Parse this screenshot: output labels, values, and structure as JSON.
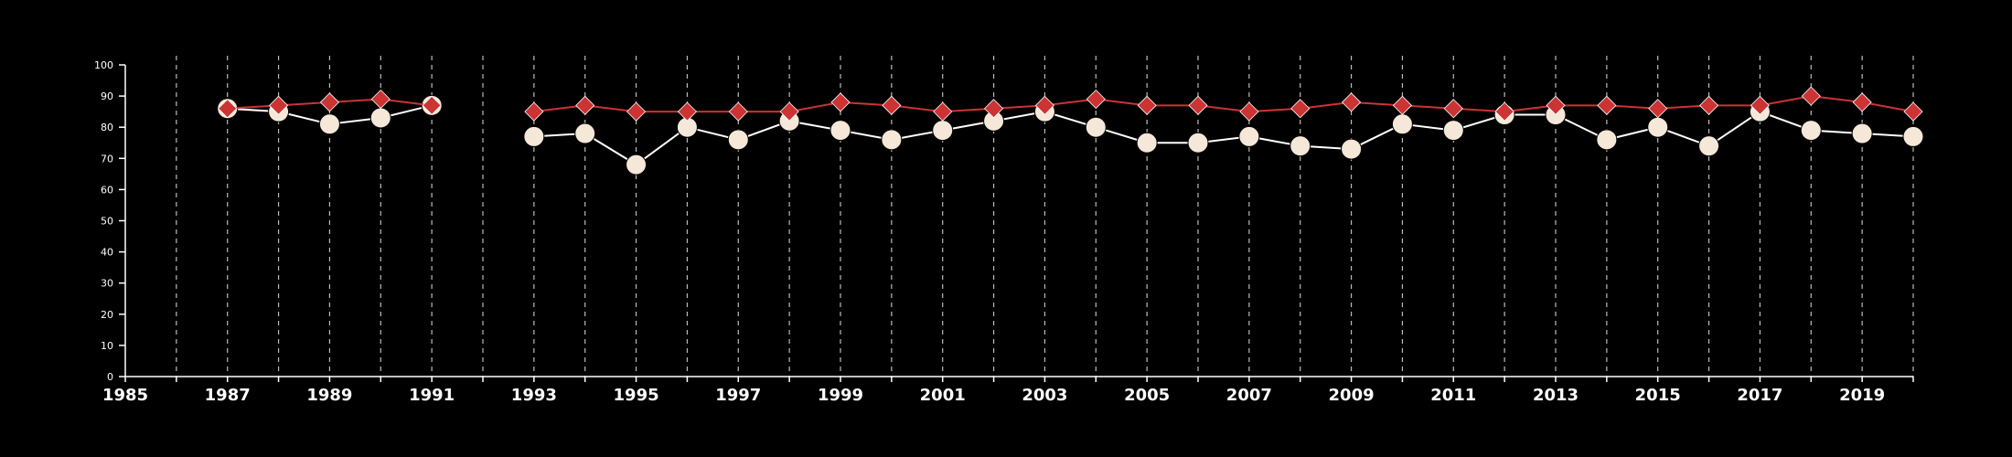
{
  "chart_data": {
    "type": "line",
    "title": "",
    "xlabel": "",
    "ylabel": "",
    "xlim": [
      1985,
      2020
    ],
    "ylim": [
      0,
      100
    ],
    "y_ticks": [
      0,
      10,
      20,
      30,
      40,
      50,
      60,
      70,
      80,
      90,
      100
    ],
    "x_ticks": [
      1985,
      1987,
      1989,
      1991,
      1993,
      1995,
      1997,
      1999,
      2001,
      2003,
      2005,
      2007,
      2009,
      2011,
      2013,
      2015,
      2017,
      2019
    ],
    "x_gridlines": [
      1986,
      1987,
      1988,
      1989,
      1990,
      1991,
      1992,
      1993,
      1994,
      1995,
      1996,
      1997,
      1998,
      1999,
      2000,
      2001,
      2002,
      2003,
      2004,
      2005,
      2006,
      2007,
      2008,
      2009,
      2010,
      2011,
      2012,
      2013,
      2014,
      2015,
      2016,
      2017,
      2018,
      2019,
      2020
    ],
    "grid": "vertical dashed",
    "legend": "none",
    "series": [
      {
        "marker": "diamond",
        "color": "#cc3333",
        "x": [
          1987,
          1988,
          1989,
          1990,
          1991,
          1993,
          1994,
          1995,
          1996,
          1997,
          1998,
          1999,
          2000,
          2001,
          2002,
          2003,
          2004,
          2005,
          2006,
          2007,
          2008,
          2009,
          2010,
          2011,
          2012,
          2013,
          2014,
          2015,
          2016,
          2017,
          2018,
          2019,
          2020
        ],
        "values": [
          86,
          87,
          88,
          89,
          87,
          85,
          87,
          85,
          85,
          85,
          85,
          88,
          87,
          85,
          86,
          87,
          89,
          87,
          87,
          85,
          86,
          88,
          87,
          86,
          85,
          87,
          87,
          86,
          87,
          87,
          90,
          88,
          85
        ]
      },
      {
        "marker": "circle",
        "color": "#f5e8d8",
        "x": [
          1987,
          1988,
          1989,
          1990,
          1991,
          1993,
          1994,
          1995,
          1996,
          1997,
          1998,
          1999,
          2000,
          2001,
          2002,
          2003,
          2004,
          2005,
          2006,
          2007,
          2008,
          2009,
          2010,
          2011,
          2012,
          2013,
          2014,
          2015,
          2016,
          2017,
          2018,
          2019,
          2020
        ],
        "values": [
          86,
          85,
          81,
          83,
          87,
          77,
          78,
          68,
          80,
          76,
          82,
          79,
          76,
          79,
          82,
          85,
          80,
          75,
          75,
          77,
          74,
          73,
          81,
          79,
          84,
          84,
          76,
          80,
          74,
          85,
          79,
          78,
          77
        ]
      }
    ]
  }
}
